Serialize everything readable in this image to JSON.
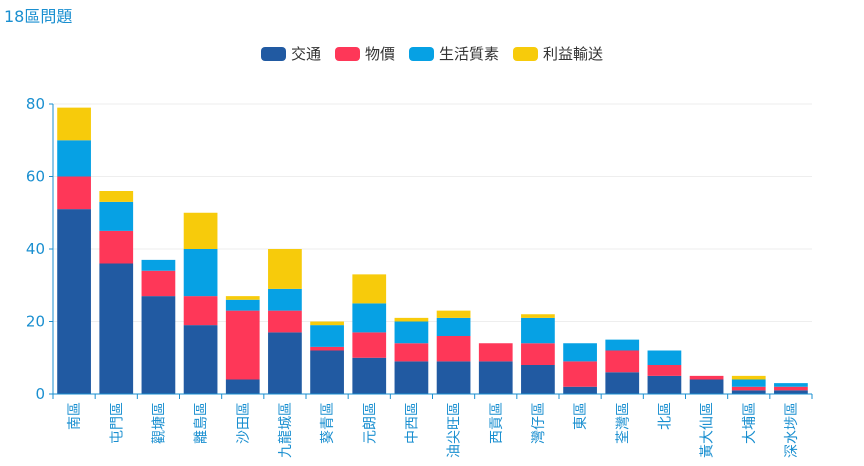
{
  "title": "18區問題",
  "chart_data": {
    "type": "bar",
    "stacked": true,
    "title": "18區問題",
    "xlabel": "",
    "ylabel": "",
    "ylim": [
      0,
      80
    ],
    "yticks": [
      0,
      20,
      40,
      60,
      80
    ],
    "grid": true,
    "legend_position": "top-center",
    "categories": [
      "南區",
      "屯門區",
      "觀塘區",
      "離島區",
      "沙田區",
      "九龍城區",
      "葵青區",
      "元朗區",
      "中西區",
      "油尖旺區",
      "西貢區",
      "灣仔區",
      "東區",
      "荃灣區",
      "北區",
      "黃大仙區",
      "大埔區",
      "深水埗區"
    ],
    "series": [
      {
        "name": "交通",
        "color": "#215aa2",
        "values": [
          51,
          36,
          27,
          19,
          4,
          17,
          12,
          10,
          9,
          9,
          9,
          8,
          2,
          6,
          5,
          4,
          1,
          1
        ]
      },
      {
        "name": "物價",
        "color": "#fe3758",
        "values": [
          9,
          9,
          7,
          8,
          19,
          6,
          1,
          7,
          5,
          7,
          5,
          6,
          7,
          6,
          3,
          1,
          1,
          1
        ]
      },
      {
        "name": "生活質素",
        "color": "#06a1e4",
        "values": [
          10,
          8,
          3,
          13,
          3,
          6,
          6,
          8,
          6,
          5,
          0,
          7,
          5,
          3,
          4,
          0,
          2,
          1
        ]
      },
      {
        "name": "利益輸送",
        "color": "#f7cb0b",
        "values": [
          9,
          3,
          0,
          10,
          1,
          11,
          1,
          8,
          1,
          2,
          0,
          1,
          0,
          0,
          0,
          0,
          1,
          0
        ]
      }
    ]
  }
}
